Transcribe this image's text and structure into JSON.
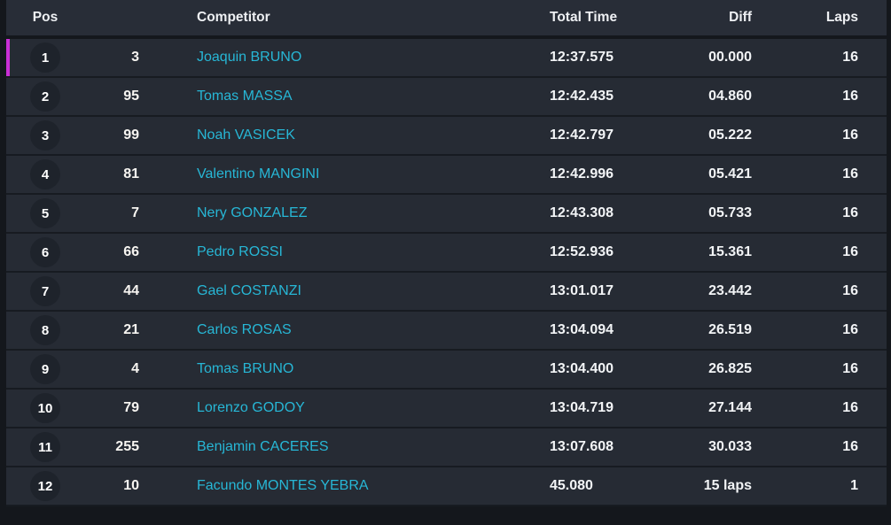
{
  "colors": {
    "page_bg": "#14171c",
    "header_bg": "#282d37",
    "row_bg": "#262b34",
    "separator": "#171b21",
    "badge_bg": "#1e232b",
    "selected_accent": "#c92fd6",
    "competitor_link": "#27b7d6",
    "text_primary": "#f2f4f6"
  },
  "table": {
    "columns": {
      "pos": "Pos",
      "competitor": "Competitor",
      "total_time": "Total Time",
      "diff": "Diff",
      "laps": "Laps"
    },
    "rows": [
      {
        "pos": "1",
        "num": "3",
        "name": "Joaquin BRUNO",
        "total_time": "12:37.575",
        "diff": "00.000",
        "laps": "16",
        "selected": true
      },
      {
        "pos": "2",
        "num": "95",
        "name": "Tomas MASSA",
        "total_time": "12:42.435",
        "diff": "04.860",
        "laps": "16",
        "selected": false
      },
      {
        "pos": "3",
        "num": "99",
        "name": "Noah VASICEK",
        "total_time": "12:42.797",
        "diff": "05.222",
        "laps": "16",
        "selected": false
      },
      {
        "pos": "4",
        "num": "81",
        "name": "Valentino MANGINI",
        "total_time": "12:42.996",
        "diff": "05.421",
        "laps": "16",
        "selected": false
      },
      {
        "pos": "5",
        "num": "7",
        "name": "Nery GONZALEZ",
        "total_time": "12:43.308",
        "diff": "05.733",
        "laps": "16",
        "selected": false
      },
      {
        "pos": "6",
        "num": "66",
        "name": "Pedro ROSSI",
        "total_time": "12:52.936",
        "diff": "15.361",
        "laps": "16",
        "selected": false
      },
      {
        "pos": "7",
        "num": "44",
        "name": "Gael COSTANZI",
        "total_time": "13:01.017",
        "diff": "23.442",
        "laps": "16",
        "selected": false
      },
      {
        "pos": "8",
        "num": "21",
        "name": "Carlos ROSAS",
        "total_time": "13:04.094",
        "diff": "26.519",
        "laps": "16",
        "selected": false
      },
      {
        "pos": "9",
        "num": "4",
        "name": "Tomas BRUNO",
        "total_time": "13:04.400",
        "diff": "26.825",
        "laps": "16",
        "selected": false
      },
      {
        "pos": "10",
        "num": "79",
        "name": "Lorenzo GODOY",
        "total_time": "13:04.719",
        "diff": "27.144",
        "laps": "16",
        "selected": false
      },
      {
        "pos": "11",
        "num": "255",
        "name": "Benjamin CACERES",
        "total_time": "13:07.608",
        "diff": "30.033",
        "laps": "16",
        "selected": false
      },
      {
        "pos": "12",
        "num": "10",
        "name": "Facundo MONTES YEBRA",
        "total_time": "45.080",
        "diff": "15 laps",
        "laps": "1",
        "selected": false
      }
    ]
  }
}
